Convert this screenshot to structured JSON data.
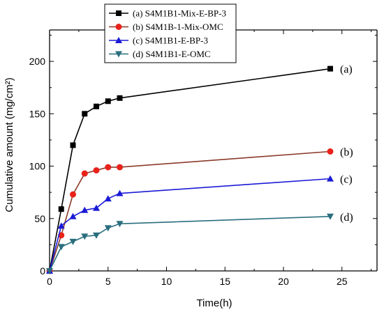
{
  "chart_data": {
    "type": "line",
    "xlabel": "Time(h)",
    "ylabel": "Cumulative amount (mg/cm²)",
    "xlim": [
      0,
      28
    ],
    "ylim": [
      0,
      230
    ],
    "x_ticks": [
      0,
      5,
      10,
      15,
      20,
      25
    ],
    "y_ticks": [
      0,
      50,
      100,
      150,
      200
    ],
    "legend_position": "top-left",
    "grid": false,
    "series": [
      {
        "name": "(a) S4M1B1-Mix-E-BP-3",
        "tag": "(a)",
        "color": "#000000",
        "marker": "square",
        "x": [
          0,
          1,
          2,
          3,
          4,
          5,
          6,
          24
        ],
        "y": [
          0,
          59,
          120,
          150,
          157,
          162,
          165,
          193
        ]
      },
      {
        "name": "(b) S4M1B-1-Mix-OMC",
        "tag": "(b)",
        "color": "#e8221b",
        "line_color": "#8b3a2a",
        "marker": "circle",
        "x": [
          0,
          1,
          2,
          3,
          4,
          5,
          6,
          24
        ],
        "y": [
          0,
          34,
          73,
          93,
          96,
          99,
          99,
          114
        ]
      },
      {
        "name": "(c) S4M1B1-E-BP-3",
        "tag": "(c)",
        "color": "#1a1ad6",
        "marker": "triangle-up",
        "x": [
          0,
          1,
          2,
          3,
          4,
          5,
          6,
          24
        ],
        "y": [
          0,
          43,
          52,
          58,
          60,
          69,
          74,
          88
        ]
      },
      {
        "name": "(d) S4M1B1-E-OMC",
        "tag": "(d)",
        "color": "#2a6e7e",
        "marker": "triangle-down",
        "x": [
          0,
          1,
          2,
          3,
          4,
          5,
          6,
          24
        ],
        "y": [
          0,
          23,
          28,
          33,
          34,
          41,
          45,
          52
        ]
      }
    ]
  }
}
